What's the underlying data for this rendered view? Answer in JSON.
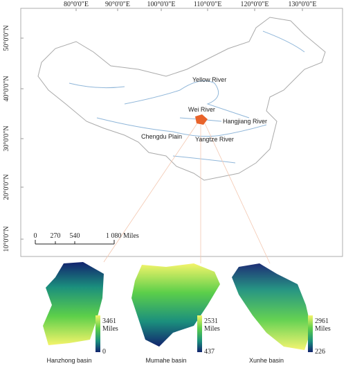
{
  "map": {
    "lon_labels": [
      "80°0'0\"E",
      "90°0'0\"E",
      "100°0'0\"E",
      "110°0'0\"E",
      "120°0'0\"E",
      "130°0'0\"E"
    ],
    "lat_labels": [
      "50°0'0\"N",
      "40°0'0\"N",
      "30°0'0\"N",
      "20°0'0\"N",
      "10°0'0\"N"
    ],
    "places": [
      "Yellow River",
      "Wei River",
      "Hangjiang River",
      "Chengdu Plain",
      "Yangtze River"
    ],
    "scale_bar": [
      "0",
      "270",
      "540",
      "1 080 Miles"
    ]
  },
  "basins": [
    {
      "name": "Hanzhong basin",
      "max": "3461",
      "unit": "Miles",
      "min": "0"
    },
    {
      "name": "Mumahe basin",
      "max": "2531",
      "unit": "Miles",
      "min": "437"
    },
    {
      "name": "Xunhe basin",
      "max": "2961",
      "unit": "Miles",
      "min": "226"
    }
  ]
}
